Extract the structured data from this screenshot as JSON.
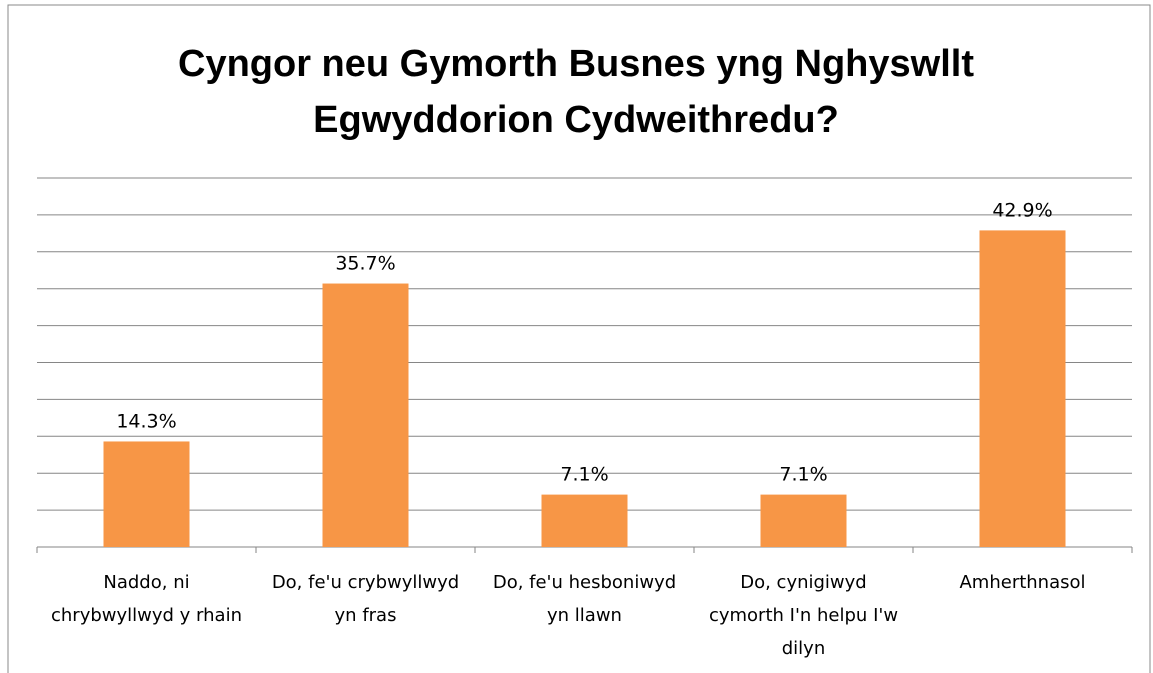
{
  "chart_data": {
    "type": "bar",
    "title": "Cyngor neu Gymorth Busnes yng Nghyswllt Egwyddorion Cydweithredu?",
    "categories": [
      "Naddo, ni chrybwyllwyd y rhain",
      "Do, fe'u crybwyllwyd yn fras",
      "Do, fe'u hesboniwyd yn llawn",
      "Do, cynigiwyd cymorth I'n helpu I'w dilyn",
      "Amherthnasol"
    ],
    "values": [
      14.3,
      35.7,
      7.1,
      7.1,
      42.9
    ],
    "value_labels": [
      "14.3%",
      "35.7%",
      "7.1%",
      "7.1%",
      "42.9%"
    ],
    "color": "#f79646",
    "ylim": [
      0,
      50
    ],
    "yticks": [
      0,
      5,
      10,
      15,
      20,
      25,
      30,
      35,
      40,
      45,
      50
    ],
    "grid": true
  }
}
